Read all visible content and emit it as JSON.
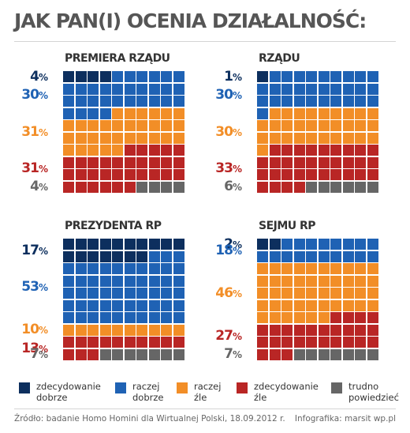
{
  "title": "JAK PAN(I) OCENIA DZIAŁALNOŚĆ:",
  "colors": {
    "zdecydowanie_dobrze": "#0d2f5e",
    "raczej_dobrze": "#1f62b4",
    "raczej_zle": "#f28e27",
    "zdecydowanie_zle": "#b92625",
    "trudno_powiedziec": "#666666"
  },
  "chart_data": [
    {
      "type": "waffle",
      "title": "PREMIERA RZĄDU",
      "categories": [
        "zdecydowanie dobrze",
        "raczej dobrze",
        "raczej źle",
        "zdecydowanie źle",
        "trudno powiedzieć"
      ],
      "values": [
        4,
        30,
        31,
        31,
        4
      ],
      "labels": [
        "4",
        "30",
        "31",
        "31",
        "4"
      ]
    },
    {
      "type": "waffle",
      "title": "RZĄDU",
      "categories": [
        "zdecydowanie dobrze",
        "raczej dobrze",
        "raczej źle",
        "zdecydowanie źle",
        "trudno powiedzieć"
      ],
      "values": [
        1,
        30,
        30,
        33,
        6
      ],
      "labels": [
        "1",
        "30",
        "30",
        "33",
        "6"
      ]
    },
    {
      "type": "waffle",
      "title": "PREZYDENTA RP",
      "categories": [
        "zdecydowanie dobrze",
        "raczej dobrze",
        "raczej źle",
        "zdecydowanie źle",
        "trudno powiedzieć"
      ],
      "values": [
        17,
        53,
        10,
        13,
        7
      ],
      "labels": [
        "17",
        "53",
        "10",
        "13",
        "7"
      ]
    },
    {
      "type": "waffle",
      "title": "SEJMU RP",
      "categories": [
        "zdecydowanie dobrze",
        "raczej dobrze",
        "raczej źle",
        "zdecydowanie źle",
        "trudno powiedzieć"
      ],
      "values": [
        2,
        18,
        46,
        27,
        7
      ],
      "labels": [
        "2",
        "18",
        "46",
        "27",
        "7"
      ]
    }
  ],
  "percent_sign": "%",
  "legend": [
    {
      "label": "zdecydowanie\ndobrze",
      "color": "#0d2f5e"
    },
    {
      "label": "raczej\ndobrze",
      "color": "#1f62b4"
    },
    {
      "label": "raczej\nźle",
      "color": "#f28e27"
    },
    {
      "label": "zdecydowanie\nźle",
      "color": "#b92625"
    },
    {
      "label": "trudno\npowiedzieć",
      "color": "#666666"
    }
  ],
  "footer": {
    "source": "Źródło: badanie Homo Homini dla Wirtualnej Polski, 18.09.2012 r.",
    "credit": "Infografika: marsit wp.pl"
  }
}
